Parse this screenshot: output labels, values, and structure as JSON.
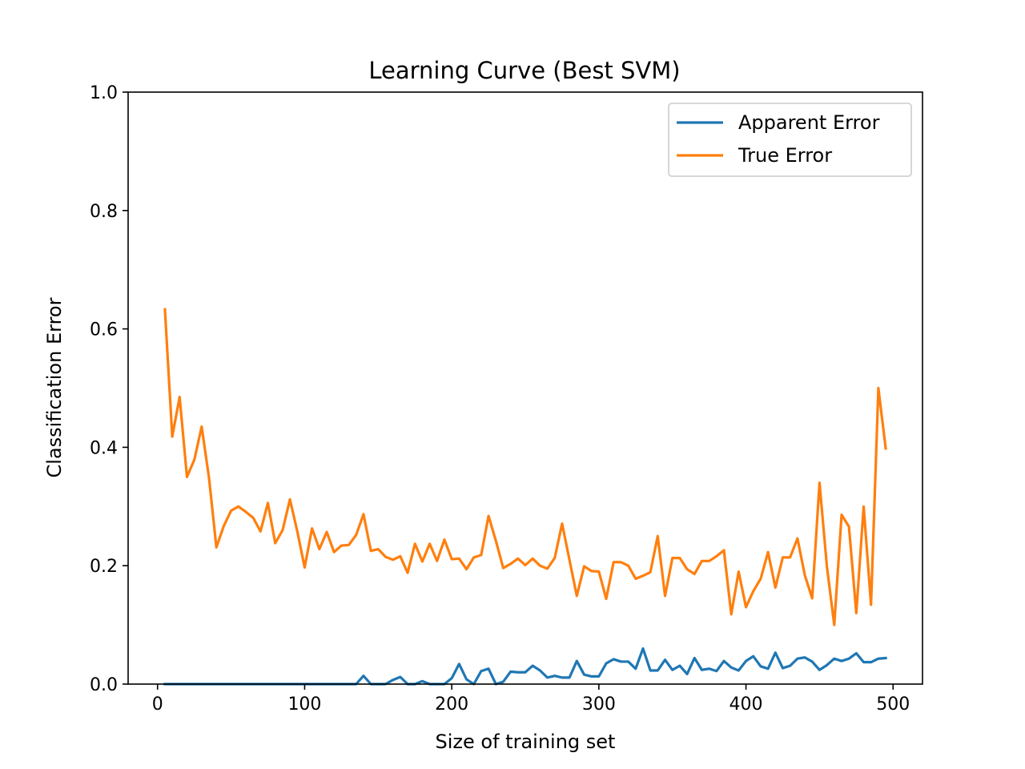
{
  "chart_data": {
    "type": "line",
    "title": "Learning Curve (Best SVM)",
    "xlabel": "Size of training set",
    "ylabel": "Classification Error",
    "xlim": [
      -20,
      520
    ],
    "ylim": [
      0,
      1
    ],
    "xticks": [
      0,
      100,
      200,
      300,
      400,
      500
    ],
    "xtick_labels": [
      "0",
      "100",
      "200",
      "300",
      "400",
      "500"
    ],
    "yticks": [
      0.0,
      0.2,
      0.4,
      0.6,
      0.8,
      1.0
    ],
    "ytick_labels": [
      "0.0",
      "0.2",
      "0.4",
      "0.6",
      "0.8",
      "1.0"
    ],
    "grid": false,
    "legend_position": "top-right",
    "x": [
      5,
      10,
      15,
      20,
      25,
      30,
      35,
      40,
      45,
      50,
      55,
      60,
      65,
      70,
      75,
      80,
      85,
      90,
      95,
      100,
      105,
      110,
      115,
      120,
      125,
      130,
      135,
      140,
      145,
      150,
      155,
      160,
      165,
      170,
      175,
      180,
      185,
      190,
      195,
      200,
      205,
      210,
      215,
      220,
      225,
      230,
      235,
      240,
      245,
      250,
      255,
      260,
      265,
      270,
      275,
      280,
      285,
      290,
      295,
      300,
      305,
      310,
      315,
      320,
      325,
      330,
      335,
      340,
      345,
      350,
      355,
      360,
      365,
      370,
      375,
      380,
      385,
      390,
      395,
      400,
      405,
      410,
      415,
      420,
      425,
      430,
      435,
      440,
      445,
      450,
      455,
      460,
      465,
      470,
      475,
      480,
      485,
      490,
      495
    ],
    "series": [
      {
        "name": "Apparent Error",
        "color": "#1f77b4",
        "values": [
          0,
          0,
          0,
          0,
          0,
          0,
          0,
          0,
          0,
          0,
          0,
          0,
          0,
          0,
          0,
          0,
          0,
          0,
          0,
          0,
          0,
          0,
          0,
          0,
          0,
          0,
          0,
          0.014,
          0,
          0,
          0,
          0.007,
          0.012,
          0,
          0,
          0.005,
          0,
          0,
          0,
          0.01,
          0.034,
          0.008,
          0,
          0.022,
          0.026,
          0,
          0.004,
          0.021,
          0.02,
          0.02,
          0.031,
          0.023,
          0.011,
          0.014,
          0.011,
          0.011,
          0.039,
          0.016,
          0.013,
          0.013,
          0.035,
          0.042,
          0.038,
          0.038,
          0.026,
          0.06,
          0.023,
          0.023,
          0.041,
          0.024,
          0.031,
          0.017,
          0.044,
          0.024,
          0.026,
          0.022,
          0.039,
          0.028,
          0.023,
          0.039,
          0.047,
          0.03,
          0.026,
          0.053,
          0.027,
          0.031,
          0.043,
          0.045,
          0.038,
          0.024,
          0.032,
          0.043,
          0.039,
          0.043,
          0.052,
          0.037,
          0.037,
          0.043,
          0.044
        ]
      },
      {
        "name": "True Error",
        "color": "#ff7f0e",
        "values": [
          0.633,
          0.418,
          0.485,
          0.35,
          0.379,
          0.435,
          0.348,
          0.231,
          0.267,
          0.293,
          0.3,
          0.291,
          0.281,
          0.258,
          0.306,
          0.238,
          0.26,
          0.312,
          0.258,
          0.197,
          0.263,
          0.228,
          0.257,
          0.223,
          0.234,
          0.235,
          0.252,
          0.287,
          0.225,
          0.228,
          0.215,
          0.21,
          0.216,
          0.188,
          0.237,
          0.207,
          0.237,
          0.208,
          0.244,
          0.211,
          0.212,
          0.194,
          0.214,
          0.218,
          0.284,
          0.242,
          0.196,
          0.203,
          0.212,
          0.201,
          0.212,
          0.2,
          0.195,
          0.213,
          0.271,
          0.21,
          0.149,
          0.199,
          0.191,
          0.19,
          0.144,
          0.206,
          0.206,
          0.2,
          0.178,
          0.183,
          0.189,
          0.25,
          0.149,
          0.213,
          0.213,
          0.194,
          0.186,
          0.208,
          0.208,
          0.216,
          0.226,
          0.118,
          0.19,
          0.13,
          0.157,
          0.178,
          0.223,
          0.163,
          0.214,
          0.214,
          0.246,
          0.184,
          0.145,
          0.34,
          0.199,
          0.1,
          0.286,
          0.266,
          0.12,
          0.3,
          0.134,
          0.5,
          0.398
        ]
      }
    ]
  }
}
